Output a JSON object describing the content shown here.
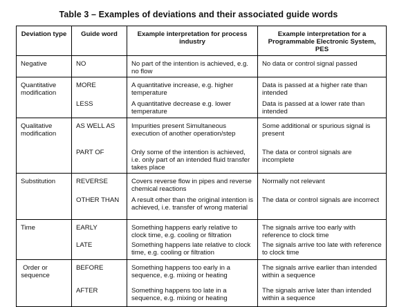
{
  "caption": "Table 3 – Examples of deviations and their associated guide words",
  "headers": {
    "deviation_type": "Deviation type",
    "guide_word": "Guide word",
    "process": "Example interpretation for process industry",
    "pes": "Example interpretation for a Programmable Electronic System, PES"
  },
  "groups": [
    {
      "deviation": "Negative",
      "entries": [
        {
          "guide": "NO",
          "process": "No part of the intention is achieved, e.g. no flow",
          "pes": "No data or control signal passed"
        }
      ]
    },
    {
      "deviation": "Quantitative modification",
      "entries": [
        {
          "guide": "MORE",
          "process": "A quantitative increase, e.g. higher temperature",
          "pes": "Data is passed at a higher rate than intended"
        },
        {
          "guide": "LESS",
          "process": "A quantitative decrease e.g. lower temperature",
          "pes": "Data is passed at a lower rate than intended"
        }
      ]
    },
    {
      "deviation": "Qualitative modification",
      "entries": [
        {
          "guide": "AS WELL AS",
          "process": "Impurities present Simultaneous execution of another operation/step",
          "pes": "Some additional or spurious signal is present"
        },
        {
          "guide": "PART OF",
          "process": "Only some of the intention is achieved, i.e. only part of an intended fluid transfer takes place",
          "pes": "The data or control signals are incomplete"
        }
      ]
    },
    {
      "deviation": "Substitution",
      "entries": [
        {
          "guide": "REVERSE",
          "process": "Covers reverse flow in pipes and reverse chemical reactions",
          "pes": "Normally not relevant"
        },
        {
          "guide": "OTHER THAN",
          "process": "A result other than the original intention is achieved, i.e. transfer of wrong material",
          "pes": "The data or control signals are incorrect"
        }
      ]
    },
    {
      "deviation": "Time",
      "entries": [
        {
          "guide": "EARLY",
          "process": "Something happens early relative to clock time, e.g. cooling or filtration",
          "pes": "The signals arrive too early with reference to clock time"
        },
        {
          "guide": "LATE",
          "process": "Something happens late relative to clock time, e.g. cooling or filtration",
          "pes": "The signals arrive too late with reference to clock time"
        }
      ]
    },
    {
      "deviation": "Order or sequence",
      "entries": [
        {
          "guide": "BEFORE",
          "process": "Something happens too early in a sequence, e.g. mixing or heating",
          "pes": "The signals arrive earlier than intended within a sequence"
        },
        {
          "guide": "AFTER",
          "process": "Something happens too late in a sequence, e.g. mixing or heating",
          "pes": "The signals arrive later than intended within a sequence"
        }
      ]
    }
  ]
}
